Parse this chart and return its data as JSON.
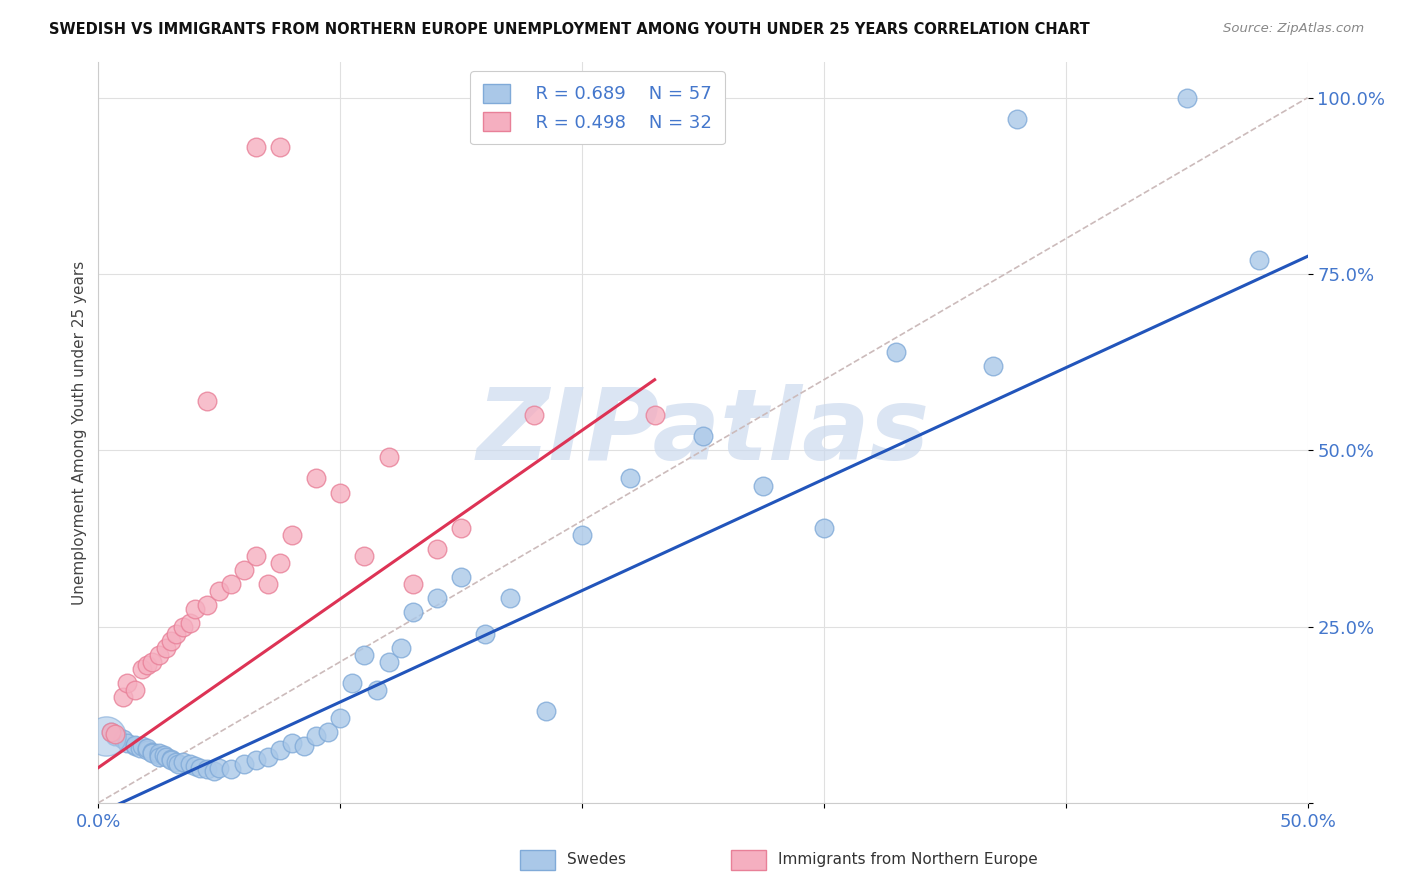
{
  "title": "SWEDISH VS IMMIGRANTS FROM NORTHERN EUROPE UNEMPLOYMENT AMONG YOUTH UNDER 25 YEARS CORRELATION CHART",
  "source": "Source: ZipAtlas.com",
  "ylabel": "Unemployment Among Youth under 25 years",
  "xlim": [
    0.0,
    0.5
  ],
  "ylim": [
    0.0,
    1.05
  ],
  "blue_R": 0.689,
  "blue_N": 57,
  "pink_R": 0.498,
  "pink_N": 32,
  "blue_label": "Swedes",
  "pink_label": "Immigrants from Northern Europe",
  "blue_color": "#aac8e8",
  "pink_color": "#f5afc0",
  "blue_edge": "#80aad8",
  "pink_edge": "#e88098",
  "blue_line_color": "#2255bb",
  "pink_line_color": "#dd3355",
  "diag_color": "#ccbbbb",
  "watermark_color": "#ccdaee",
  "background_color": "#ffffff",
  "grid_color": "#e0e0e0",
  "tick_color": "#4477cc",
  "blue_scatter_x": [
    0.005,
    0.007,
    0.01,
    0.012,
    0.015,
    0.015,
    0.017,
    0.018,
    0.02,
    0.02,
    0.022,
    0.022,
    0.025,
    0.025,
    0.025,
    0.027,
    0.028,
    0.03,
    0.03,
    0.032,
    0.033,
    0.035,
    0.038,
    0.04,
    0.042,
    0.045,
    0.048,
    0.05,
    0.055,
    0.06,
    0.065,
    0.07,
    0.075,
    0.08,
    0.085,
    0.09,
    0.095,
    0.1,
    0.105,
    0.11,
    0.115,
    0.12,
    0.125,
    0.13,
    0.14,
    0.15,
    0.16,
    0.17,
    0.185,
    0.2,
    0.22,
    0.25,
    0.275,
    0.3,
    0.33,
    0.37,
    0.48
  ],
  "blue_scatter_y": [
    0.1,
    0.095,
    0.09,
    0.085,
    0.08,
    0.082,
    0.078,
    0.08,
    0.075,
    0.078,
    0.072,
    0.07,
    0.068,
    0.07,
    0.065,
    0.068,
    0.065,
    0.062,
    0.06,
    0.058,
    0.055,
    0.058,
    0.055,
    0.052,
    0.05,
    0.048,
    0.045,
    0.05,
    0.048,
    0.055,
    0.06,
    0.065,
    0.075,
    0.085,
    0.08,
    0.095,
    0.1,
    0.12,
    0.17,
    0.21,
    0.16,
    0.2,
    0.22,
    0.27,
    0.29,
    0.32,
    0.24,
    0.29,
    0.13,
    0.38,
    0.46,
    0.52,
    0.45,
    0.39,
    0.64,
    0.62,
    0.77
  ],
  "pink_scatter_x": [
    0.005,
    0.007,
    0.01,
    0.012,
    0.015,
    0.018,
    0.02,
    0.022,
    0.025,
    0.028,
    0.03,
    0.032,
    0.035,
    0.038,
    0.04,
    0.045,
    0.05,
    0.055,
    0.06,
    0.065,
    0.07,
    0.075,
    0.08,
    0.09,
    0.1,
    0.11,
    0.12,
    0.13,
    0.14,
    0.15,
    0.18,
    0.23
  ],
  "pink_scatter_y": [
    0.1,
    0.098,
    0.15,
    0.17,
    0.16,
    0.19,
    0.195,
    0.2,
    0.21,
    0.22,
    0.23,
    0.24,
    0.25,
    0.255,
    0.275,
    0.28,
    0.3,
    0.31,
    0.33,
    0.35,
    0.31,
    0.34,
    0.38,
    0.46,
    0.44,
    0.35,
    0.49,
    0.31,
    0.36,
    0.39,
    0.55,
    0.55
  ],
  "blue_line_x": [
    0.0,
    0.5
  ],
  "blue_line_y": [
    -0.015,
    0.775
  ],
  "pink_line_x": [
    0.0,
    0.23
  ],
  "pink_line_y": [
    0.05,
    0.6
  ],
  "diag_line_x": [
    0.0,
    0.5
  ],
  "diag_line_y": [
    0.0,
    1.0
  ],
  "xtick_positions": [
    0.0,
    0.1,
    0.2,
    0.3,
    0.4,
    0.5
  ],
  "xticklabels": [
    "0.0%",
    "",
    "",
    "",
    "",
    "50.0%"
  ],
  "ytick_positions": [
    0.0,
    0.25,
    0.5,
    0.75,
    1.0
  ],
  "yticklabels": [
    "",
    "25.0%",
    "50.0%",
    "75.0%",
    "100.0%"
  ]
}
